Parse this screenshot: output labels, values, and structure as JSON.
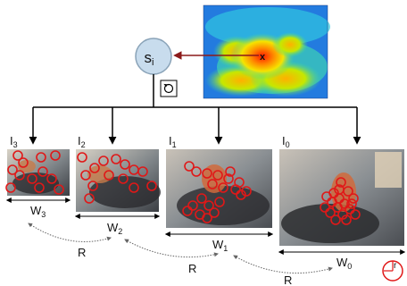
{
  "state_node": {
    "main": "s",
    "sub": "i"
  },
  "heatmap": {
    "target_mark": "x"
  },
  "frames": [
    {
      "id": "I3",
      "letter": "I",
      "sub": "3",
      "width_label": "W",
      "width_sub": "3",
      "circles": 12
    },
    {
      "id": "I2",
      "letter": "I",
      "sub": "2",
      "width_label": "W",
      "width_sub": "2",
      "circles": 14
    },
    {
      "id": "I1",
      "letter": "I",
      "sub": "1",
      "width_label": "W",
      "width_sub": "1",
      "circles": 20
    },
    {
      "id": "I0",
      "letter": "I",
      "sub": "0",
      "width_label": "W",
      "width_sub": "0",
      "circles": 18
    }
  ],
  "relation_label": "R",
  "corner_symbol": "r",
  "colors": {
    "node_fill": "#c8dced",
    "node_stroke": "#8aa3b8",
    "arrow_red": "#8b1a1a",
    "circle_red": "#e01818",
    "line": "#000000",
    "relation_arrow": "#666666"
  }
}
